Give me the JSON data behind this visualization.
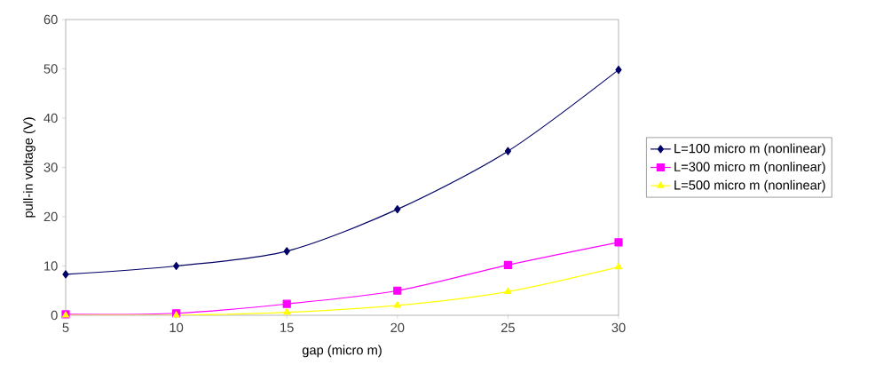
{
  "chart_data": {
    "type": "line",
    "xlabel": "gap (micro m)",
    "ylabel": "pull-in voltage (V)",
    "x": [
      5,
      10,
      15,
      20,
      25,
      30
    ],
    "series": [
      {
        "name": "L=100 micro m (nonlinear)",
        "color": "#000066",
        "marker": "diamond",
        "values": [
          8.3,
          10,
          13,
          21.5,
          33.3,
          49.8
        ]
      },
      {
        "name": "L=300 micro m (nonlinear)",
        "color": "#ff00ff",
        "marker": "square",
        "values": [
          0.2,
          0.4,
          2.3,
          5,
          10.2,
          14.8
        ]
      },
      {
        "name": "L=500 micro m (nonlinear)",
        "color": "#ffff00",
        "marker": "triangle",
        "values": [
          0,
          0,
          0.6,
          2,
          4.8,
          9.8
        ]
      }
    ],
    "xlim": [
      5,
      30
    ],
    "xticks": [
      5,
      10,
      15,
      20,
      25,
      30
    ],
    "ylim": [
      0,
      60
    ],
    "yticks": [
      0,
      10,
      20,
      30,
      40,
      50,
      60
    ],
    "grid": false,
    "legend": "right",
    "line_style": "solid"
  }
}
